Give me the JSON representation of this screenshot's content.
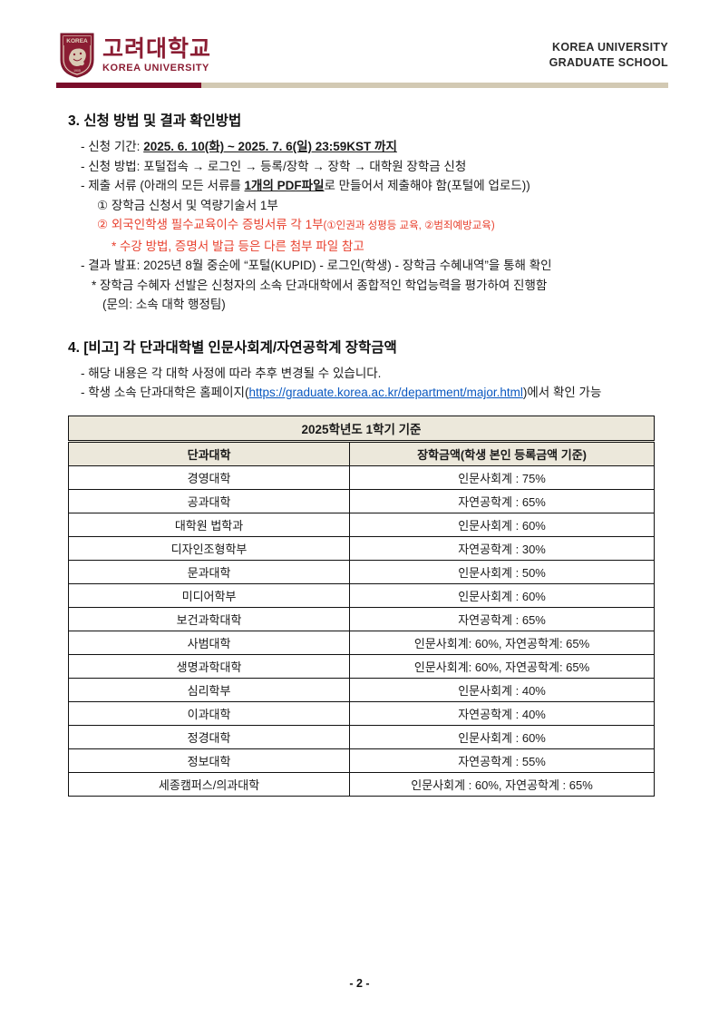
{
  "header": {
    "logo_korean": "고려대학교",
    "logo_english": "KOREA UNIVERSITY",
    "shield_label": "KOREA",
    "right_line1": "KOREA UNIVERSITY",
    "right_line2": "GRADUATE SCHOOL",
    "crimson": "#7a0c2a",
    "tan": "#d2c9b3"
  },
  "section3": {
    "heading": "3. 신청 방법 및 결과 확인방법",
    "period_prefix": "- 신청 기간: ",
    "period_value": "2025. 6. 10(화) ~ 2025. 7. 6(일) 23:59KST 까지",
    "method_line": "- 신청 방법: 포털접속 → 로그인 → 등록/장학 → 장학 → 대학원 장학금 신청",
    "docs_prefix": "- 제출 서류 (아래의 모든 서류를 ",
    "docs_bold": "1개의 PDF파일",
    "docs_suffix": "로 만들어서 제출해야 함(포털에 업로드))",
    "doc_item1": "① 장학금 신청서 및 역량기술서 1부",
    "doc_item2": "② 외국인학생 필수교육이수 증빙서류 각 1부",
    "doc_item2_paren": "(①인권과 성평등 교육, ②범죄예방교육)",
    "doc_item2_note": "* 수강 방법, 증명서 발급 등은 다른 첨부 파일 참고",
    "result_line": "- 결과 발표: 2025년 8월 중순에 “포털(KUPID) - 로그인(학생) - 장학금 수혜내역”을 통해 확인",
    "result_note1": "* 장학금 수혜자 선발은 신청자의 소속 단과대학에서 종합적인 학업능력을 평가하여 진행함",
    "result_note2": "(문의: 소속 대학 행정팀)"
  },
  "section4": {
    "heading": "4. [비고] 각 단과대학별 인문사회계/자연공학계 장학금액",
    "note1": "- 해당 내용은 각 대학 사정에 따라 추후 변경될 수 있습니다.",
    "link_prefix": "- 학생 소속 단과대학은 홈페이지(",
    "link_url": "https://graduate.korea.ac.kr/department/major.html",
    "link_suffix": ")에서 확인 가능"
  },
  "table": {
    "title": "2025학년도 1학기 기준",
    "columns": [
      "단과대학",
      "장학금액(학생 본인 등록금액 기준)"
    ],
    "rows": [
      {
        "college": "경영대학",
        "amount": "인문사회계 : 75%"
      },
      {
        "college": "공과대학",
        "amount": "자연공학계 : 65%"
      },
      {
        "college": "대학원 법학과",
        "amount": "인문사회계 : 60%"
      },
      {
        "college": "디자인조형학부",
        "amount": "자연공학계 : 30%"
      },
      {
        "college": "문과대학",
        "amount": "인문사회계 : 50%"
      },
      {
        "college": "미디어학부",
        "amount": "인문사회계 : 60%"
      },
      {
        "college": "보건과학대학",
        "amount": "자연공학계 : 65%"
      },
      {
        "college": "사범대학",
        "amount": "인문사회계: 60%, 자연공학계: 65%"
      },
      {
        "college": "생명과학대학",
        "amount": "인문사회계: 60%, 자연공학계: 65%"
      },
      {
        "college": "심리학부",
        "amount": "인문사회계 : 40%"
      },
      {
        "college": "이과대학",
        "amount": "자연공학계 : 40%"
      },
      {
        "college": "정경대학",
        "amount": "인문사회계 : 60%"
      },
      {
        "college": "정보대학",
        "amount": "자연공학계 : 55%"
      },
      {
        "college": "세종캠퍼스/의과대학",
        "amount": "인문사회계 : 60%, 자연공학계 : 65%"
      }
    ]
  },
  "footer": {
    "page_number": "- 2 -"
  }
}
